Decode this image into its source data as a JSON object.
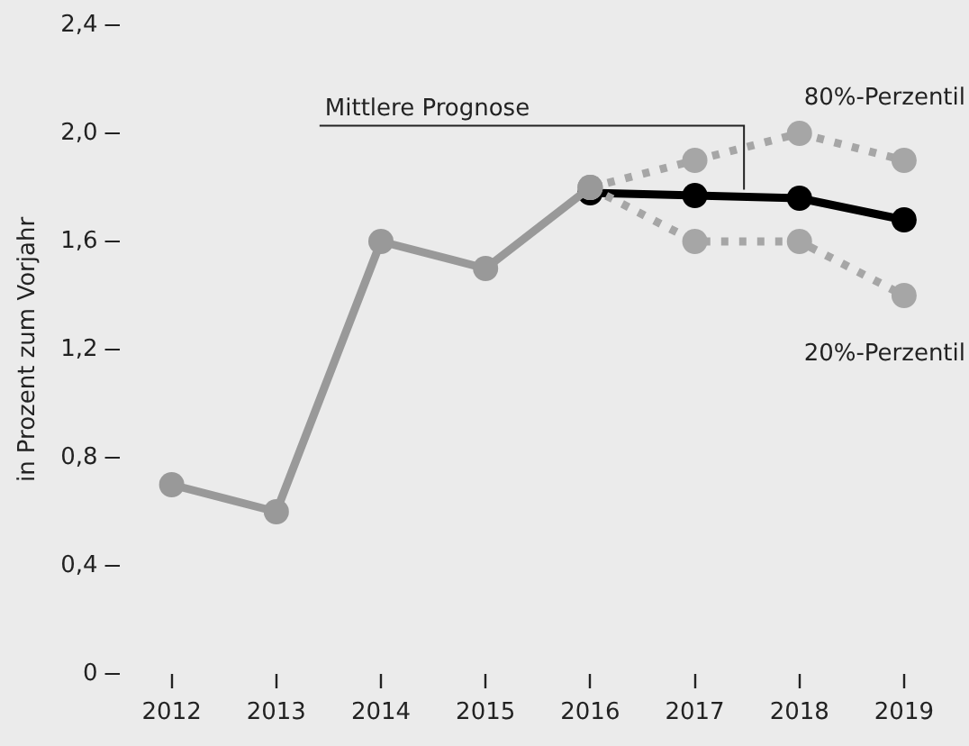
{
  "chart_data": {
    "type": "line",
    "ylabel": "in Prozent zum Vorjahr",
    "categories": [
      "2012",
      "2013",
      "2014",
      "2015",
      "2016",
      "2017",
      "2018",
      "2019"
    ],
    "series": [
      {
        "color": "#999999",
        "values": [
          0.7,
          0.6,
          1.6,
          1.5,
          1.8,
          null,
          null,
          null
        ],
        "line_style": "solid"
      },
      {
        "name": "Mittlere Prognose",
        "color": "#000000",
        "values": [
          null,
          null,
          null,
          null,
          1.78,
          1.77,
          1.76,
          1.68
        ],
        "line_style": "solid"
      },
      {
        "name": "80%-Perzentil",
        "color": "#a6a6a6",
        "values": [
          null,
          null,
          null,
          null,
          1.8,
          1.9,
          2.0,
          1.9
        ],
        "line_style": "dotted"
      },
      {
        "name": "20%-Perzentil",
        "color": "#a6a6a6",
        "values": [
          null,
          null,
          null,
          null,
          1.8,
          1.6,
          1.6,
          1.4
        ],
        "line_style": "dotted"
      }
    ],
    "ylim": [
      0,
      2.4
    ],
    "yticks": [
      0,
      {
        "value": 0.4,
        "label": "0,4"
      },
      {
        "value": 0.8,
        "label": "0,8"
      },
      {
        "value": 1.2,
        "label": "1,2"
      },
      {
        "value": 1.6,
        "label": "1,6"
      },
      {
        "value": 2.0,
        "label": "2,0"
      },
      {
        "value": 2.4,
        "label": "2,4"
      }
    ],
    "grid": false,
    "legend": false,
    "marker": "circle"
  }
}
